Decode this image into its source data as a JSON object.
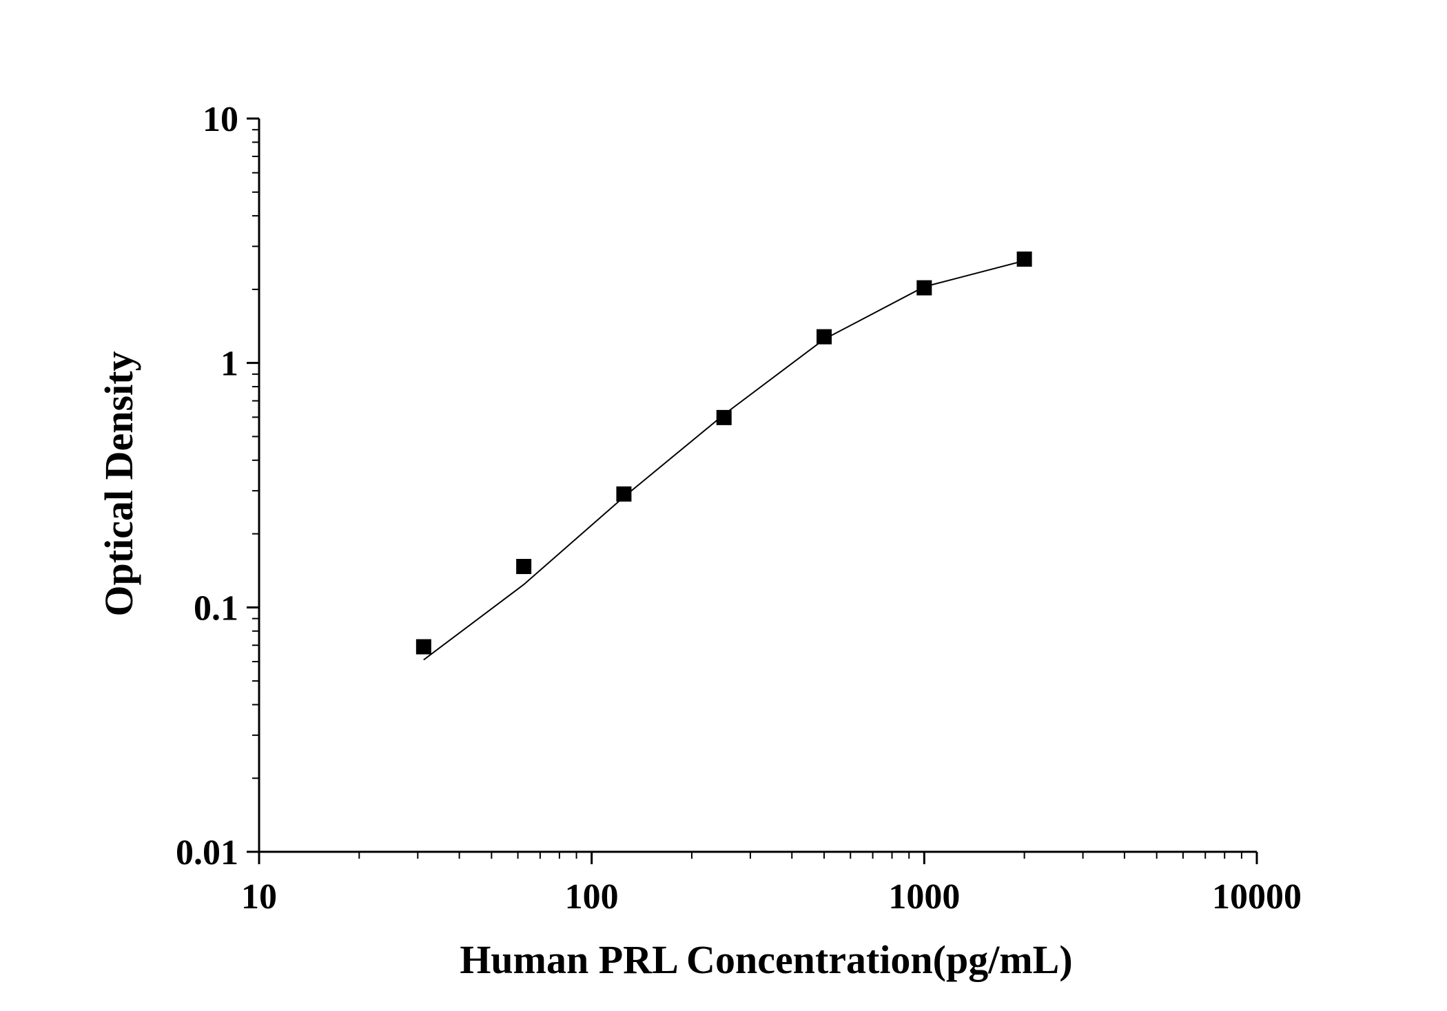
{
  "chart_data": {
    "type": "scatter",
    "title": "",
    "xlabel": "Human PRL Concentration(pg/mL)",
    "ylabel": "Optical Density",
    "x_scale": "log",
    "y_scale": "log",
    "xlim": [
      10,
      10000
    ],
    "ylim": [
      0.01,
      10
    ],
    "x_ticks": [
      {
        "value": 10,
        "label": "10"
      },
      {
        "value": 100,
        "label": "100"
      },
      {
        "value": 1000,
        "label": "1000"
      },
      {
        "value": 10000,
        "label": "10000"
      }
    ],
    "y_ticks": [
      {
        "value": 0.01,
        "label": "0.01"
      },
      {
        "value": 0.1,
        "label": "0.1"
      },
      {
        "value": 1,
        "label": "1"
      },
      {
        "value": 10,
        "label": "10"
      }
    ],
    "grid": false,
    "legend": "none",
    "colors": {
      "marker": "#000000",
      "line": "#000000",
      "axis": "#000000"
    },
    "series": [
      {
        "kind": "points",
        "marker": "square",
        "x": [
          31.25,
          62.5,
          125,
          250,
          500,
          1000,
          2000
        ],
        "y": [
          0.069,
          0.147,
          0.291,
          0.598,
          1.28,
          2.03,
          2.66
        ]
      },
      {
        "kind": "fit-line",
        "x": [
          31.25,
          62.5,
          125,
          250,
          500,
          1000,
          2000
        ],
        "y": [
          0.061,
          0.124,
          0.283,
          0.615,
          1.25,
          2.05,
          2.62
        ]
      }
    ]
  }
}
